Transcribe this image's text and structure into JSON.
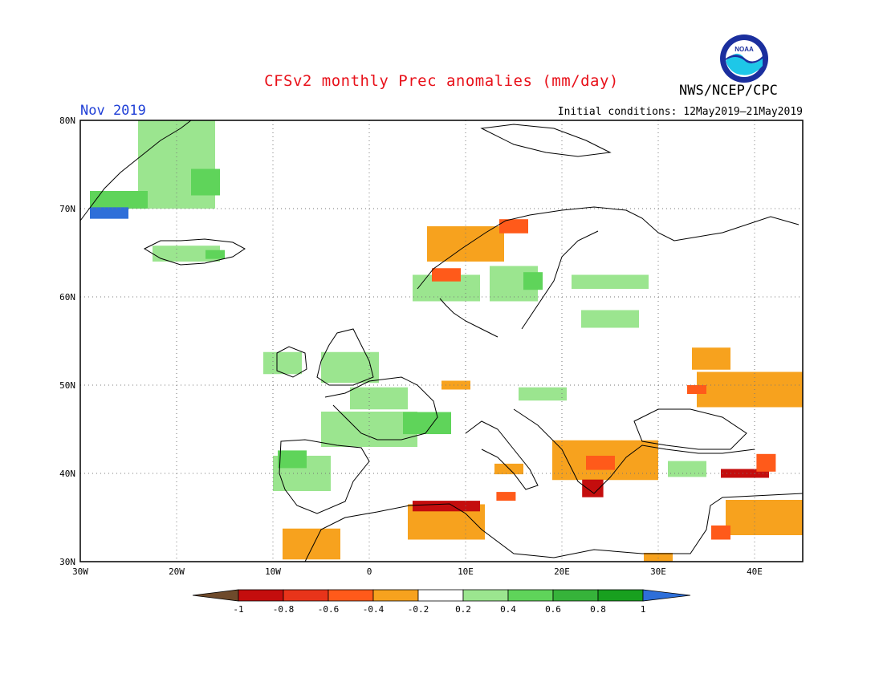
{
  "header": {
    "title": "CFSv2 monthly Prec anomalies (mm/day)",
    "agency": "NWS/NCEP/CPC",
    "logo_text": "NOAA",
    "month": "Nov 2019",
    "initial_conditions": "Initial conditions: 12May2019–21May2019"
  },
  "map": {
    "lon_range": [
      -30,
      45
    ],
    "lat_range": [
      30,
      80
    ],
    "lon_ticks": [
      "30W",
      "20W",
      "10W",
      "0",
      "10E",
      "20E",
      "30E",
      "40E"
    ],
    "lat_ticks": [
      "80N",
      "70N",
      "60N",
      "50N",
      "40N",
      "30N"
    ],
    "grid": "dotted"
  },
  "colorbar": {
    "labels": [
      "-1",
      "-0.8",
      "-0.6",
      "-0.4",
      "-0.2",
      "0.2",
      "0.4",
      "0.6",
      "0.8",
      "1"
    ],
    "colors": [
      "#6e4a2b",
      "#c40d0d",
      "#e8341a",
      "#ff5a1a",
      "#f7a21e",
      "#ffffff",
      "#9be58f",
      "#5fd45a",
      "#36b33a",
      "#18a01f",
      "#2e6fd9"
    ]
  },
  "colors": {
    "light_green": "#9be58f",
    "green": "#5fd45a",
    "dark_green": "#36b33a",
    "orange": "#f7a21e",
    "red_orange": "#ff5a1a",
    "red": "#c40d0d",
    "blue": "#2e6fd9"
  },
  "anomalies": [
    {
      "lon": -20,
      "lat": 75,
      "w": 8,
      "h": 10,
      "level": "light_green"
    },
    {
      "lon": -17,
      "lat": 73,
      "w": 3,
      "h": 3,
      "level": "green"
    },
    {
      "lon": -26,
      "lat": 71,
      "w": 6,
      "h": 2,
      "level": "green"
    },
    {
      "lon": -27,
      "lat": 69.5,
      "w": 4,
      "h": 1.3,
      "level": "blue"
    },
    {
      "lon": -19,
      "lat": 64.9,
      "w": 7,
      "h": 1.8,
      "level": "light_green"
    },
    {
      "lon": -16,
      "lat": 64.8,
      "w": 2,
      "h": 1,
      "level": "green"
    },
    {
      "lon": -9,
      "lat": 52.5,
      "w": 4,
      "h": 2.5,
      "level": "light_green"
    },
    {
      "lon": -2,
      "lat": 52,
      "w": 6,
      "h": 3.5,
      "level": "light_green"
    },
    {
      "lon": 1,
      "lat": 48.5,
      "w": 6,
      "h": 2.5,
      "level": "light_green"
    },
    {
      "lon": 0,
      "lat": 45,
      "w": 10,
      "h": 4,
      "level": "light_green"
    },
    {
      "lon": 6,
      "lat": 45.7,
      "w": 5,
      "h": 2.5,
      "level": "green"
    },
    {
      "lon": -7,
      "lat": 40,
      "w": 6,
      "h": 4,
      "level": "light_green"
    },
    {
      "lon": -8,
      "lat": 41.6,
      "w": 3,
      "h": 2,
      "level": "green"
    },
    {
      "lon": 8,
      "lat": 61,
      "w": 7,
      "h": 3,
      "level": "light_green"
    },
    {
      "lon": 15,
      "lat": 61.5,
      "w": 5,
      "h": 4,
      "level": "light_green"
    },
    {
      "lon": 17,
      "lat": 61.8,
      "w": 2,
      "h": 2,
      "level": "green"
    },
    {
      "lon": 25,
      "lat": 61.7,
      "w": 8,
      "h": 1.6,
      "level": "light_green"
    },
    {
      "lon": 25,
      "lat": 57.5,
      "w": 6,
      "h": 2,
      "level": "light_green"
    },
    {
      "lon": 18,
      "lat": 49,
      "w": 5,
      "h": 1.5,
      "level": "light_green"
    },
    {
      "lon": 33,
      "lat": 40.5,
      "w": 4,
      "h": 1.8,
      "level": "light_green"
    },
    {
      "lon": 10,
      "lat": 66,
      "w": 8,
      "h": 4,
      "level": "orange"
    },
    {
      "lon": 8,
      "lat": 62.5,
      "w": 3,
      "h": 1.5,
      "level": "red_orange"
    },
    {
      "lon": 15,
      "lat": 68,
      "w": 3,
      "h": 1.6,
      "level": "red_orange"
    },
    {
      "lon": 9,
      "lat": 50,
      "w": 3,
      "h": 1,
      "level": "orange"
    },
    {
      "lon": 24.5,
      "lat": 41.5,
      "w": 11,
      "h": 4.5,
      "level": "orange"
    },
    {
      "lon": 24,
      "lat": 41.2,
      "w": 3,
      "h": 1.6,
      "level": "red_orange"
    },
    {
      "lon": 23.2,
      "lat": 38.3,
      "w": 2.2,
      "h": 2,
      "level": "red"
    },
    {
      "lon": 39.5,
      "lat": 49.5,
      "w": 11,
      "h": 4,
      "level": "orange"
    },
    {
      "lon": 35.5,
      "lat": 53,
      "w": 4,
      "h": 2.5,
      "level": "orange"
    },
    {
      "lon": 34,
      "lat": 49.5,
      "w": 2,
      "h": 1,
      "level": "red_orange"
    },
    {
      "lon": 39,
      "lat": 40,
      "w": 5,
      "h": 1,
      "level": "red"
    },
    {
      "lon": 41.2,
      "lat": 41.2,
      "w": 2,
      "h": 2,
      "level": "red_orange"
    },
    {
      "lon": 41,
      "lat": 35,
      "w": 8,
      "h": 4,
      "level": "orange"
    },
    {
      "lon": 36.5,
      "lat": 33.3,
      "w": 2,
      "h": 1.6,
      "level": "red_orange"
    },
    {
      "lon": 8,
      "lat": 34.5,
      "w": 8,
      "h": 4,
      "level": "orange"
    },
    {
      "lon": 8,
      "lat": 36.3,
      "w": 7,
      "h": 1.2,
      "level": "red"
    },
    {
      "lon": -6,
      "lat": 32,
      "w": 6,
      "h": 3.5,
      "level": "orange"
    },
    {
      "lon": 14.5,
      "lat": 40.5,
      "w": 3,
      "h": 1.2,
      "level": "orange"
    },
    {
      "lon": 14.2,
      "lat": 37.4,
      "w": 2,
      "h": 1,
      "level": "red_orange"
    },
    {
      "lon": 30,
      "lat": 30.5,
      "w": 3,
      "h": 1,
      "level": "orange"
    }
  ]
}
